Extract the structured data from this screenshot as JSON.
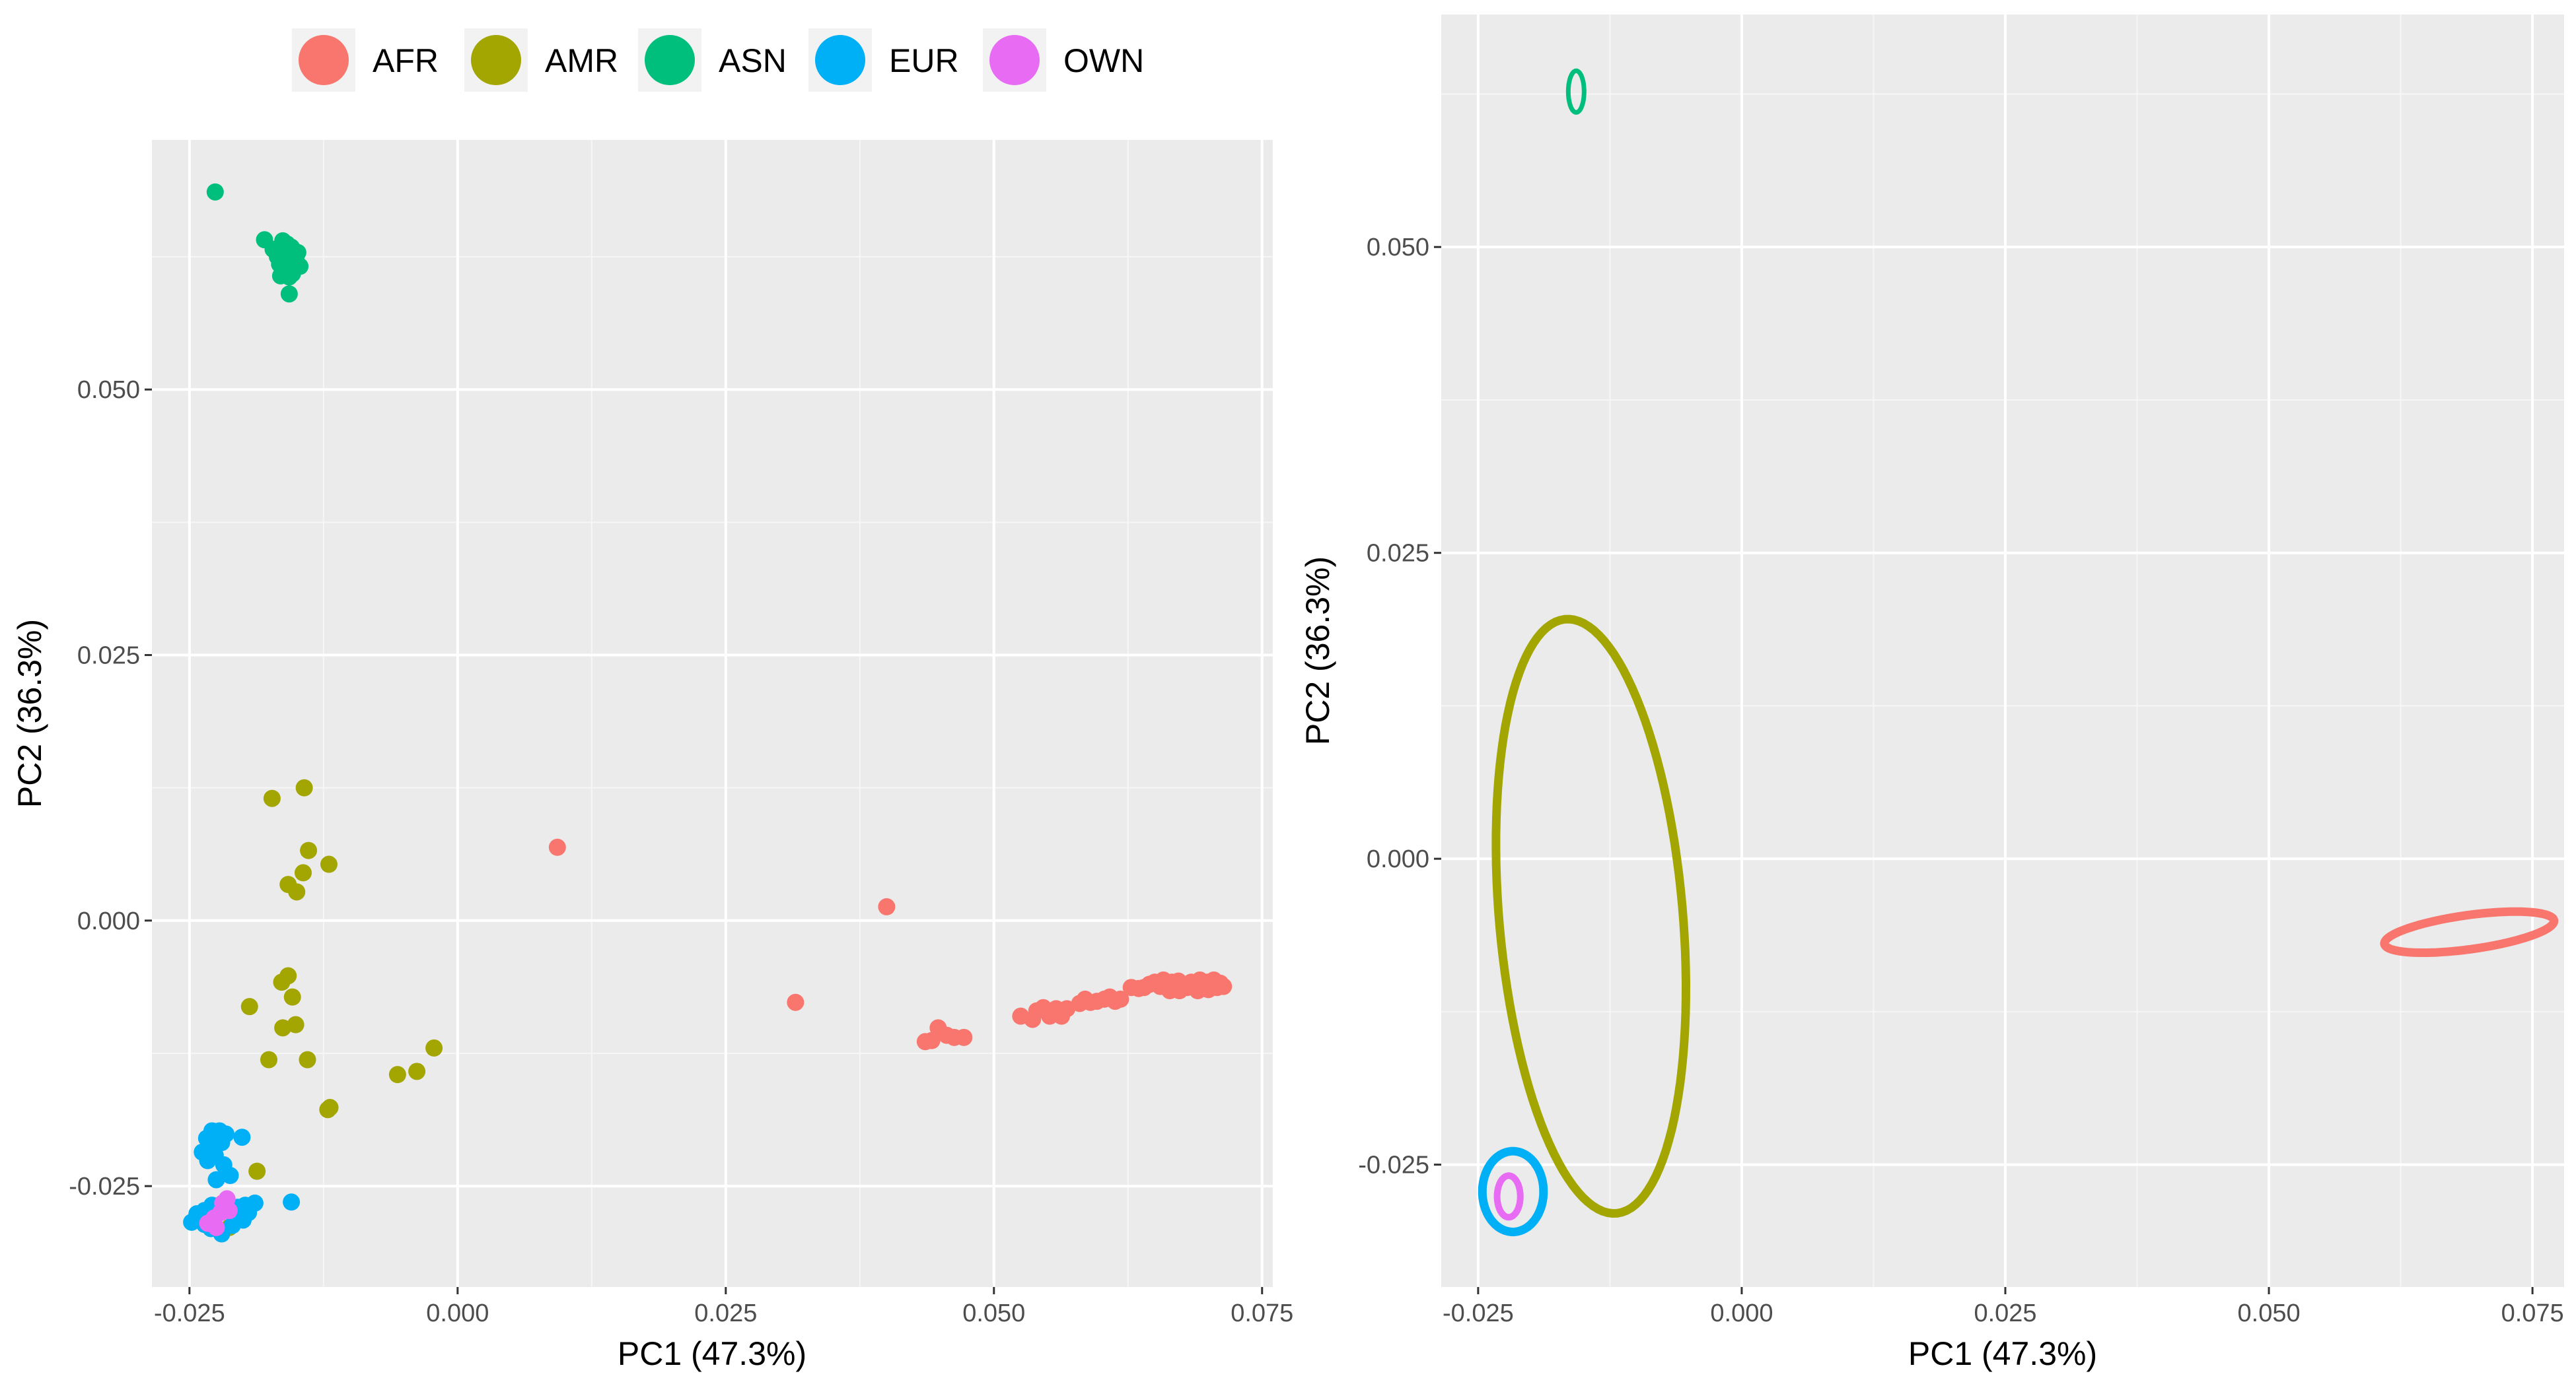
{
  "legend": {
    "entries": [
      {
        "label": "AFR",
        "color": "#F8766D"
      },
      {
        "label": "AMR",
        "color": "#A3A500"
      },
      {
        "label": "ASN",
        "color": "#00BF7D"
      },
      {
        "label": "EUR",
        "color": "#00B0F6"
      },
      {
        "label": "OWN",
        "color": "#E76BF3"
      }
    ]
  },
  "chart_data": [
    {
      "type": "scatter",
      "xlabel": "PC1 (47.3%)",
      "ylabel": "PC2 (36.3%)",
      "xlim": [
        -0.0285,
        0.076
      ],
      "ylim": [
        -0.0345,
        0.0735
      ],
      "x_ticks": [
        -0.025,
        0.0,
        0.025,
        0.05,
        0.075
      ],
      "x_tick_labels": [
        "-0.025",
        "0.000",
        "0.025",
        "0.050",
        "0.075"
      ],
      "y_ticks": [
        -0.025,
        0.0,
        0.025,
        0.05
      ],
      "y_tick_labels": [
        "-0.025",
        "0.000",
        "0.025",
        "0.050"
      ],
      "grid": true,
      "series": [
        {
          "name": "AFR",
          "color": "#F8766D",
          "points": [
            [
              0.0093,
              0.0069
            ],
            [
              0.04,
              0.0013
            ],
            [
              0.0315,
              -0.0077
            ],
            [
              0.0436,
              -0.0114
            ],
            [
              0.0442,
              -0.0113
            ],
            [
              0.0448,
              -0.0101
            ],
            [
              0.0456,
              -0.0108
            ],
            [
              0.0463,
              -0.011
            ],
            [
              0.0472,
              -0.011
            ],
            [
              0.0525,
              -0.009
            ],
            [
              0.0536,
              -0.0093
            ],
            [
              0.054,
              -0.0085
            ],
            [
              0.0546,
              -0.0082
            ],
            [
              0.0552,
              -0.009
            ],
            [
              0.0558,
              -0.0083
            ],
            [
              0.0563,
              -0.009
            ],
            [
              0.0568,
              -0.0083
            ],
            [
              0.058,
              -0.0078
            ],
            [
              0.0585,
              -0.0074
            ],
            [
              0.059,
              -0.0077
            ],
            [
              0.0596,
              -0.0076
            ],
            [
              0.0603,
              -0.0074
            ],
            [
              0.0608,
              -0.0072
            ],
            [
              0.0613,
              -0.0076
            ],
            [
              0.0618,
              -0.0074
            ],
            [
              0.0628,
              -0.0063
            ],
            [
              0.0635,
              -0.0064
            ],
            [
              0.064,
              -0.0063
            ],
            [
              0.0645,
              -0.006
            ],
            [
              0.065,
              -0.0058
            ],
            [
              0.0655,
              -0.0062
            ],
            [
              0.0658,
              -0.0056
            ],
            [
              0.0662,
              -0.0061
            ],
            [
              0.0666,
              -0.0058
            ],
            [
              0.0669,
              -0.0064
            ],
            [
              0.0672,
              -0.0057
            ],
            [
              0.0676,
              -0.006
            ],
            [
              0.068,
              -0.0063
            ],
            [
              0.0684,
              -0.0058
            ],
            [
              0.0688,
              -0.0061
            ],
            [
              0.0692,
              -0.0056
            ],
            [
              0.0696,
              -0.0064
            ],
            [
              0.0699,
              -0.0058
            ],
            [
              0.0702,
              -0.0061
            ],
            [
              0.0705,
              -0.0056
            ],
            [
              0.0708,
              -0.0063
            ],
            [
              0.0711,
              -0.0059
            ],
            [
              0.0714,
              -0.0062
            ],
            [
              0.0664,
              -0.0066
            ],
            [
              0.0673,
              -0.0066
            ],
            [
              0.069,
              -0.0066
            ],
            [
              0.07,
              -0.0065
            ]
          ]
        },
        {
          "name": "AMR",
          "color": "#A3A500",
          "points": [
            [
              -0.0173,
              0.0115
            ],
            [
              -0.0143,
              0.0125
            ],
            [
              -0.0139,
              0.0066
            ],
            [
              -0.012,
              0.0053
            ],
            [
              -0.0144,
              0.0045
            ],
            [
              -0.0158,
              0.0034
            ],
            [
              -0.015,
              0.0027
            ],
            [
              -0.0164,
              -0.0058
            ],
            [
              -0.0158,
              -0.0052
            ],
            [
              -0.0154,
              -0.0072
            ],
            [
              -0.0194,
              -0.0081
            ],
            [
              -0.0163,
              -0.0101
            ],
            [
              -0.0151,
              -0.0098
            ],
            [
              -0.0176,
              -0.0131
            ],
            [
              -0.014,
              -0.0131
            ],
            [
              -0.0022,
              -0.012
            ],
            [
              -0.0056,
              -0.0145
            ],
            [
              -0.0038,
              -0.0142
            ],
            [
              -0.0119,
              -0.0176
            ],
            [
              -0.0121,
              -0.0178
            ],
            [
              -0.0187,
              -0.0236
            ],
            [
              -0.0213,
              -0.0289
            ]
          ]
        },
        {
          "name": "ASN",
          "color": "#00BF7D",
          "points": [
            [
              -0.0226,
              0.0686
            ],
            [
              -0.018,
              0.0641
            ],
            [
              -0.0172,
              0.0632
            ],
            [
              -0.0168,
              0.0625
            ],
            [
              -0.0166,
              0.0618
            ],
            [
              -0.0164,
              0.063
            ],
            [
              -0.0163,
              0.064
            ],
            [
              -0.0161,
              0.0612
            ],
            [
              -0.016,
              0.0622
            ],
            [
              -0.0158,
              0.0628
            ],
            [
              -0.0157,
              0.0606
            ],
            [
              -0.0156,
              0.0618
            ],
            [
              -0.0155,
              0.0634
            ],
            [
              -0.0153,
              0.0613
            ],
            [
              -0.0152,
              0.0625
            ],
            [
              -0.015,
              0.062
            ],
            [
              -0.0149,
              0.0629
            ],
            [
              -0.0147,
              0.0616
            ],
            [
              -0.0157,
              0.059
            ],
            [
              -0.0165,
              0.0607
            ],
            [
              -0.0159,
              0.0637
            ],
            [
              -0.0154,
              0.0609
            ]
          ]
        },
        {
          "name": "EUR",
          "color": "#00B0F6",
          "points": [
            [
              -0.0248,
              -0.0284
            ],
            [
              -0.024,
              -0.0282
            ],
            [
              -0.0243,
              -0.0276
            ],
            [
              -0.0236,
              -0.0286
            ],
            [
              -0.023,
              -0.029
            ],
            [
              -0.022,
              -0.0295
            ],
            [
              -0.021,
              -0.0287
            ],
            [
              -0.02,
              -0.0282
            ],
            [
              -0.0195,
              -0.0275
            ],
            [
              -0.0236,
              -0.0273
            ],
            [
              -0.0229,
              -0.0268
            ],
            [
              -0.0222,
              -0.0272
            ],
            [
              -0.0215,
              -0.0266
            ],
            [
              -0.0205,
              -0.027
            ],
            [
              -0.0198,
              -0.0268
            ],
            [
              -0.0189,
              -0.0266
            ],
            [
              -0.0155,
              -0.0265
            ],
            [
              -0.0238,
              -0.0218
            ],
            [
              -0.0231,
              -0.0213
            ],
            [
              -0.0227,
              -0.0204
            ],
            [
              -0.0222,
              -0.0198
            ],
            [
              -0.022,
              -0.0209
            ],
            [
              -0.0216,
              -0.0201
            ],
            [
              -0.0233,
              -0.0226
            ],
            [
              -0.0226,
              -0.0221
            ],
            [
              -0.0201,
              -0.0204
            ],
            [
              -0.0212,
              -0.024
            ],
            [
              -0.0225,
              -0.0244
            ],
            [
              -0.0218,
              -0.023
            ],
            [
              -0.0229,
              -0.0198
            ],
            [
              -0.0234,
              -0.0205
            ]
          ]
        },
        {
          "name": "OWN",
          "color": "#E76BF3",
          "points": [
            [
              -0.0233,
              -0.0285
            ],
            [
              -0.0227,
              -0.028
            ],
            [
              -0.0221,
              -0.0275
            ],
            [
              -0.0219,
              -0.0266
            ],
            [
              -0.0215,
              -0.0262
            ],
            [
              -0.0213,
              -0.0273
            ],
            [
              -0.0225,
              -0.0289
            ]
          ]
        }
      ]
    },
    {
      "type": "scatter",
      "subtype": "ellipses",
      "xlabel": "PC1 (47.3%)",
      "ylabel": "PC2 (36.3%)",
      "xlim": [
        -0.0285,
        0.078
      ],
      "ylim": [
        -0.035,
        0.069
      ],
      "x_ticks": [
        -0.025,
        0.0,
        0.025,
        0.05,
        0.075
      ],
      "x_tick_labels": [
        "-0.025",
        "0.000",
        "0.025",
        "0.050",
        "0.075"
      ],
      "y_ticks": [
        -0.025,
        0.0,
        0.025,
        0.05
      ],
      "y_tick_labels": [
        "-0.025",
        "0.000",
        "0.025",
        "0.050"
      ],
      "grid": true,
      "series": [
        {
          "name": "AMR",
          "color": "#A3A500",
          "center": [
            -0.0143,
            -0.0047
          ],
          "axes": [
            0.0244,
            0.0087
          ],
          "angle_deg": 95.9,
          "stroke": 13
        },
        {
          "name": "AFR",
          "color": "#F8766D",
          "center": [
            0.069,
            -0.006
          ],
          "axes": [
            0.0081,
            0.0014
          ],
          "angle_deg": 6.7,
          "stroke": 13
        },
        {
          "name": "EUR",
          "color": "#00B0F6",
          "center": [
            -0.0217,
            -0.0272
          ],
          "axes": [
            0.0029,
            0.0033
          ],
          "angle_deg": 0,
          "stroke": 13
        },
        {
          "name": "OWN",
          "color": "#E76BF3",
          "center": [
            -0.0221,
            -0.0276
          ],
          "axes": [
            0.0011,
            0.0017
          ],
          "angle_deg": 0,
          "stroke": 10
        },
        {
          "name": "ASN",
          "color": "#00BF7D",
          "center": [
            -0.0157,
            0.0627
          ],
          "axes": [
            0.00075,
            0.0017
          ],
          "angle_deg": 0,
          "stroke": 7
        }
      ]
    }
  ]
}
